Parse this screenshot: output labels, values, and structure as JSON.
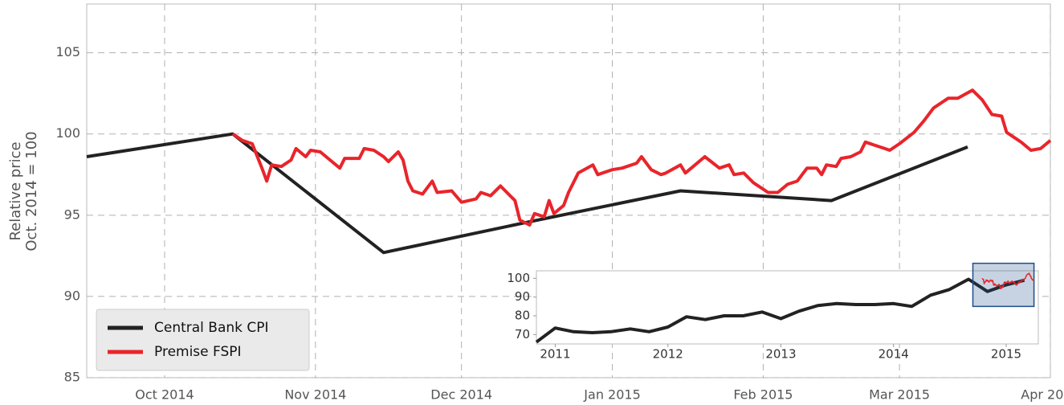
{
  "chart_data": [
    {
      "type": "line",
      "y_label": [
        "Relative price",
        "Oct. 2014 = 100"
      ],
      "xlim": [
        "2014-09-15",
        "2015-04-01"
      ],
      "xticks": [
        {
          "value": "2014-10-01",
          "label": "Oct 2014"
        },
        {
          "value": "2014-11-01",
          "label": "Nov 2014"
        },
        {
          "value": "2014-12-01",
          "label": "Dec 2014"
        },
        {
          "value": "2015-01-01",
          "label": "Jan 2015"
        },
        {
          "value": "2015-02-01",
          "label": "Feb 2015"
        },
        {
          "value": "2015-03-01",
          "label": "Mar 2015"
        },
        {
          "value": "2015-04-01",
          "label": "Apr 2015"
        }
      ],
      "ylim": [
        85,
        108
      ],
      "yticks": [
        85,
        90,
        95,
        100,
        105
      ],
      "grid": true,
      "legend": "lower left",
      "series": [
        {
          "name": "Central Bank CPI",
          "color": "#222222",
          "x": [
            "2014-09-15",
            "2014-10-15",
            "2014-11-15",
            "2014-12-15",
            "2015-01-15",
            "2015-02-15",
            "2015-03-15"
          ],
          "values": [
            98.6,
            100.0,
            92.7,
            94.6,
            96.5,
            95.9,
            99.2
          ]
        },
        {
          "name": "Premise FSPI",
          "color": "#e8252b",
          "x": [
            "2014-10-15",
            "2014-10-17",
            "2014-10-19",
            "2014-10-21",
            "2014-10-22",
            "2014-10-23",
            "2014-10-25",
            "2014-10-27",
            "2014-10-28",
            "2014-10-30",
            "2014-10-31",
            "2014-11-02",
            "2014-11-04",
            "2014-11-06",
            "2014-11-07",
            "2014-11-10",
            "2014-11-11",
            "2014-11-13",
            "2014-11-15",
            "2014-11-16",
            "2014-11-18",
            "2014-11-19",
            "2014-11-20",
            "2014-11-21",
            "2014-11-23",
            "2014-11-25",
            "2014-11-26",
            "2014-11-29",
            "2014-12-01",
            "2014-12-04",
            "2014-12-05",
            "2014-12-07",
            "2014-12-09",
            "2014-12-11",
            "2014-12-12",
            "2014-12-13",
            "2014-12-15",
            "2014-12-16",
            "2014-12-18",
            "2014-12-19",
            "2014-12-20",
            "2014-12-22",
            "2014-12-23",
            "2014-12-25",
            "2014-12-28",
            "2014-12-29",
            "2015-01-01",
            "2015-01-03",
            "2015-01-06",
            "2015-01-07",
            "2015-01-09",
            "2015-01-11",
            "2015-01-12",
            "2015-01-15",
            "2015-01-16",
            "2015-01-18",
            "2015-01-20",
            "2015-01-23",
            "2015-01-25",
            "2015-01-26",
            "2015-01-28",
            "2015-01-30",
            "2015-02-02",
            "2015-02-04",
            "2015-02-06",
            "2015-02-08",
            "2015-02-10",
            "2015-02-12",
            "2015-02-13",
            "2015-02-14",
            "2015-02-16",
            "2015-02-17",
            "2015-02-19",
            "2015-02-21",
            "2015-02-22",
            "2015-02-24",
            "2015-02-26",
            "2015-02-27",
            "2015-03-01",
            "2015-03-04",
            "2015-03-06",
            "2015-03-08",
            "2015-03-11",
            "2015-03-13",
            "2015-03-16",
            "2015-03-18",
            "2015-03-20",
            "2015-03-22",
            "2015-03-23",
            "2015-03-26",
            "2015-03-28",
            "2015-03-30",
            "2015-04-01"
          ],
          "values": [
            100.0,
            99.6,
            99.4,
            97.9,
            97.1,
            98.1,
            98.0,
            98.4,
            99.1,
            98.6,
            99.0,
            98.9,
            98.4,
            97.9,
            98.5,
            98.5,
            99.1,
            99.0,
            98.6,
            98.3,
            98.9,
            98.4,
            97.1,
            96.5,
            96.3,
            97.1,
            96.4,
            96.5,
            95.8,
            96.0,
            96.4,
            96.2,
            96.8,
            96.2,
            95.9,
            94.7,
            94.4,
            95.1,
            94.9,
            95.9,
            95.1,
            95.6,
            96.4,
            97.6,
            98.1,
            97.5,
            97.8,
            97.9,
            98.2,
            98.6,
            97.8,
            97.5,
            97.6,
            98.1,
            97.6,
            98.1,
            98.6,
            97.9,
            98.1,
            97.5,
            97.6,
            97.0,
            96.4,
            96.4,
            96.9,
            97.1,
            97.9,
            97.9,
            97.5,
            98.1,
            98.0,
            98.5,
            98.6,
            98.9,
            99.5,
            99.3,
            99.1,
            99.0,
            99.4,
            100.1,
            100.8,
            101.6,
            102.2,
            102.2,
            102.7,
            102.1,
            101.2,
            101.1,
            100.1,
            99.5,
            99.0,
            99.1,
            99.6
          ]
        }
      ]
    },
    {
      "type": "line",
      "xlim": [
        "2010-11-01",
        "2015-04-15"
      ],
      "xticks": [
        {
          "value": "2011-01-01",
          "label": "2011"
        },
        {
          "value": "2012-01-01",
          "label": "2012"
        },
        {
          "value": "2013-01-01",
          "label": "2013"
        },
        {
          "value": "2014-01-01",
          "label": "2014"
        },
        {
          "value": "2015-01-01",
          "label": "2015"
        }
      ],
      "ylim": [
        65,
        104
      ],
      "yticks": [
        70,
        80,
        90,
        100
      ],
      "highlight_color": "#1f4e8c",
      "series": [
        {
          "color": "#222222",
          "x": [
            "2010-11-01",
            "2011-01-01",
            "2011-03-01",
            "2011-05-01",
            "2011-07-01",
            "2011-09-01",
            "2011-11-01",
            "2012-01-01",
            "2012-03-01",
            "2012-05-01",
            "2012-07-01",
            "2012-09-01",
            "2012-11-01",
            "2013-01-01",
            "2013-03-01",
            "2013-05-01",
            "2013-07-01",
            "2013-09-01",
            "2013-11-01",
            "2014-01-01",
            "2014-03-01",
            "2014-05-01",
            "2014-07-01",
            "2014-09-01",
            "2014-11-01",
            "2015-01-01",
            "2015-03-01"
          ],
          "values": [
            66,
            73.5,
            71.5,
            71,
            71.5,
            73,
            71.5,
            74,
            79.5,
            78,
            80,
            80,
            82,
            78.5,
            82.5,
            85.5,
            86.5,
            86,
            86,
            86.5,
            85,
            91,
            94,
            99.5,
            93,
            96.5,
            99
          ]
        }
      ]
    }
  ]
}
